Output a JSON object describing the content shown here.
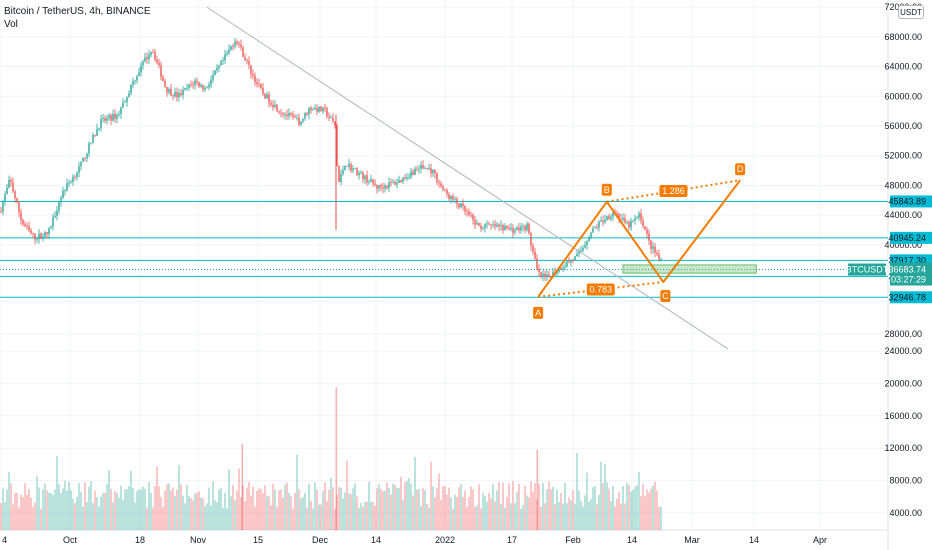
{
  "header": {
    "symbol_line": "Bitcoin / TetherUS, 4h, BINANCE",
    "volume_label": "Vol"
  },
  "currency_button": "USDT",
  "colors": {
    "up": "#26a69a",
    "down": "#ef5350",
    "pattern": "#f57c00",
    "level": "#00bcd4",
    "trendline": "#b2b5be",
    "zone": "#66bb6a",
    "axis_text": "#131722"
  },
  "chart_data": {
    "type": "candlestick",
    "yaxis": {
      "ticks": [
        72000,
        68000,
        64000,
        60000,
        56000,
        52000,
        48000,
        44000,
        40000,
        28000,
        24000,
        20000,
        16000,
        12000,
        8000,
        4000
      ]
    },
    "xaxis": {
      "ticks": [
        "4",
        "Oct",
        "18",
        "Nov",
        "15",
        "Dec",
        "14",
        "2022",
        "17",
        "Feb",
        "14",
        "Mar",
        "14",
        "Apr"
      ]
    },
    "levels": [
      45843.89,
      40945.24,
      37917.3,
      35762.5,
      32946.78
    ],
    "price_labels": [
      "45843.89",
      "40945.24",
      "37917.30",
      "35762.50",
      "32946.78"
    ],
    "last_price": {
      "symbol": "BTCUSDT",
      "price": "36683.74",
      "countdown": "03:27:29"
    },
    "harmonic_pattern": {
      "points": [
        {
          "label": "A",
          "date": "2022-01-24",
          "price": 33000
        },
        {
          "label": "B",
          "date": "2022-02-10",
          "price": 45800
        },
        {
          "label": "C",
          "date": "2022-02-24",
          "price": 35000
        },
        {
          "label": "D",
          "date": "2022-03-15",
          "price": 48700
        }
      ],
      "ratios": [
        "0.783",
        "1.286"
      ]
    },
    "trendline": {
      "from": {
        "date": "2021-11-03",
        "price": 72000
      },
      "to": {
        "date": "2022-03-12",
        "price": 26000
      }
    },
    "zone": {
      "from": "2022-02-14",
      "to": "2022-03-19",
      "top": 37300,
      "bottom": 36200
    }
  }
}
